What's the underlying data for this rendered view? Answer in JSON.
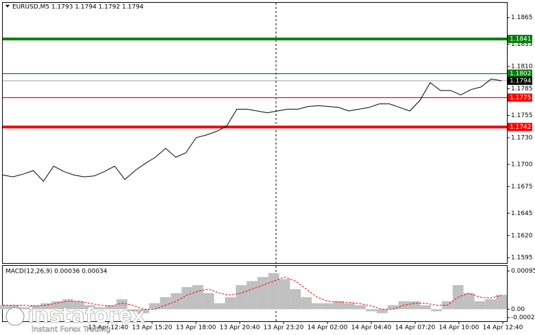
{
  "chart_data": [
    {
      "type": "line",
      "title": "EURUSD,M5  1.1793 1.1794 1.1792 1.1794",
      "color": "#000000",
      "values": [
        1.1688,
        1.1686,
        1.1689,
        1.1693,
        1.1681,
        1.1698,
        1.1692,
        1.1688,
        1.1686,
        1.1687,
        1.1692,
        1.1698,
        1.1683,
        1.1693,
        1.1701,
        1.1708,
        1.1718,
        1.1708,
        1.1713,
        1.173,
        1.1733,
        1.1737,
        1.1743,
        1.1762,
        1.1762,
        1.176,
        1.1758,
        1.176,
        1.1762,
        1.1762,
        1.1765,
        1.1766,
        1.1765,
        1.1764,
        1.176,
        1.1762,
        1.1764,
        1.1768,
        1.1768,
        1.1764,
        1.176,
        1.1772,
        1.1792,
        1.1783,
        1.1783,
        1.1778,
        1.1784,
        1.1787,
        1.1796,
        1.1794
      ],
      "ylim": [
        1.1589,
        1.18817
      ],
      "yticks": [
        1.1865,
        1.1835,
        {
          "value": 1.181,
          "label": "1.1810"
        },
        1.1785,
        1.1755,
        {
          "value": 1.173,
          "label": "1.1730"
        },
        {
          "value": 1.17,
          "label": "1.1700"
        },
        1.1675,
        1.1645,
        {
          "value": 1.162,
          "label": "1.1620"
        },
        1.1595
      ],
      "levels": [
        {
          "value": 1.1841,
          "color": "#008000",
          "thick": true
        },
        {
          "value": 1.1802,
          "color": "#008000",
          "thick": false
        },
        {
          "value": 1.1794,
          "color": "#000000",
          "thick": false
        },
        {
          "value": 1.1775,
          "color": "#ff0000",
          "thick": false
        },
        {
          "value": 1.1742,
          "color": "#ff0000",
          "thick": true
        }
      ],
      "x_labels": [
        "13 Apr 12:40",
        "13 Apr 15:20",
        "13 Apr 18:00",
        "13 Apr 20:40",
        "13 Apr 23:20",
        "14 Apr 02:00",
        "14 Apr 04:40",
        "14 Apr 07:20",
        "14 Apr 10:00",
        "14 Apr 12:40"
      ]
    },
    {
      "type": "macd",
      "title": "MACD(12,26,9) 0.00036 0.00034",
      "series": [
        {
          "color": "#c0c0c0",
          "values": [
            0.0001,
            0.0001,
            5e-05,
            0.0001,
            0.00015,
            0.0002,
            0.00025,
            0.0002,
            0.0001,
            5e-05,
            0.0001,
            0.00025,
            -5e-05,
            -0.0001,
            0.00015,
            0.0003,
            0.0004,
            0.00055,
            0.0006,
            0.0004,
            0.00015,
            0.0003,
            0.0006,
            0.0007,
            0.0008,
            0.0009,
            0.00075,
            0.0005,
            0.0003,
            0.00015,
            0.00015,
            0.0002,
            0.00015,
            0.0001,
            -5e-05,
            -0.0001,
            0.0001,
            0.0002,
            0.0002,
            0.0001,
            -5e-05,
            0.0002,
            0.0006,
            0.0004,
            0.0002,
            0.00025,
            0.00036
          ]
        },
        {
          "color": "#ff0000",
          "values": [
            0.0001,
            0.0001,
            0.0001,
            8e-05,
            0.0001,
            0.00015,
            0.0002,
            0.0002,
            0.00015,
            0.0001,
            8e-05,
            0.00015,
            0.0001,
            0,
            0,
            0.0001,
            0.0002,
            0.00035,
            0.00045,
            0.0005,
            0.0004,
            0.00035,
            0.0004,
            0.0005,
            0.0006,
            0.0007,
            0.0008,
            0.0007,
            0.0005,
            0.0003,
            0.0002,
            0.00018,
            0.00017,
            0.00014,
            8e-05,
            0,
            0,
            0.0001,
            0.00015,
            0.00015,
            0.0001,
            0.0001,
            0.0003,
            0.0004,
            0.0003,
            0.00028,
            0.00034
          ]
        }
      ],
      "ylim": [
        -0.0003,
        0.00108
      ],
      "yticks": [
        0.00095,
        {
          "value": 0,
          "label": "0.00"
        },
        -0.00021
      ]
    }
  ],
  "watermark": {
    "brand": "instaforex",
    "tagline": "Instant Forex Trading"
  }
}
